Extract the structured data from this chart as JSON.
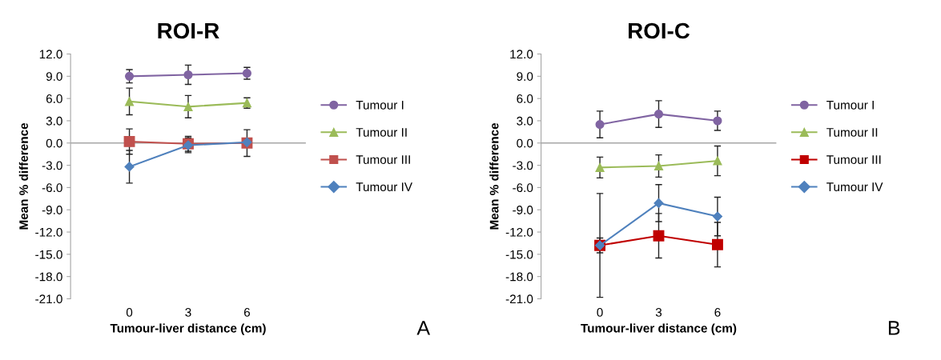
{
  "chart_data": [
    {
      "type": "line",
      "title": "ROI-R",
      "xlabel": "Tumour-liver distance (cm)",
      "ylabel": "Mean % difference",
      "categories": [
        "0",
        "3",
        "6"
      ],
      "ylim": [
        -21,
        12
      ],
      "yticks": [
        {
          "value": 12,
          "label": "12.0"
        },
        {
          "value": 9,
          "label": "9.0"
        },
        {
          "value": 6,
          "label": "6.0"
        },
        {
          "value": 3,
          "label": "3.0"
        },
        {
          "value": 0,
          "label": "0.0"
        },
        {
          "value": -3,
          "label": "-3.0"
        },
        {
          "value": -6,
          "label": "-6.0"
        },
        {
          "value": -9,
          "label": "-9.0"
        },
        {
          "value": -12,
          "label": "-12.0"
        },
        {
          "value": -15,
          "label": "-15.0"
        },
        {
          "value": -18,
          "label": "-18.0"
        },
        {
          "value": -21,
          "label": "-21.0"
        }
      ],
      "ref_lines": [
        {
          "axis": "y",
          "value": 0,
          "color": "#a6a6a6"
        }
      ],
      "grid": false,
      "legend": "right",
      "annotations": [
        "A"
      ],
      "series": [
        {
          "name": "Tumour I",
          "color": "#8064a2",
          "marker": "circle",
          "values": [
            9.0,
            9.2,
            9.4
          ],
          "errors": [
            0.9,
            1.3,
            0.8
          ]
        },
        {
          "name": "Tumour II",
          "color": "#9bbb59",
          "marker": "triangle",
          "values": [
            5.6,
            4.9,
            5.4
          ],
          "errors": [
            1.8,
            1.5,
            0.7
          ]
        },
        {
          "name": "Tumour III",
          "color": "#c0504d",
          "marker": "square",
          "values": [
            0.2,
            -0.1,
            0.0
          ],
          "errors": [
            1.7,
            1.0,
            1.8
          ]
        },
        {
          "name": "Tumour IV",
          "color": "#4f81bd",
          "marker": "diamond",
          "values": [
            -3.2,
            -0.3,
            0.1
          ],
          "errors": [
            2.2,
            1.0,
            null
          ]
        }
      ]
    },
    {
      "type": "line",
      "title": "ROI-C",
      "xlabel": "Tumour-liver distance (cm)",
      "ylabel": "Mean % difference",
      "categories": [
        "0",
        "3",
        "6"
      ],
      "ylim": [
        -21,
        12
      ],
      "yticks": [
        {
          "value": 12,
          "label": "12.0"
        },
        {
          "value": 9,
          "label": "9.0"
        },
        {
          "value": 6,
          "label": "6.0"
        },
        {
          "value": 3,
          "label": "3.0"
        },
        {
          "value": 0,
          "label": "0.0"
        },
        {
          "value": -3,
          "label": "-3.0"
        },
        {
          "value": -6,
          "label": "-6.0"
        },
        {
          "value": -9,
          "label": "-9.0"
        },
        {
          "value": -12,
          "label": "-12.0"
        },
        {
          "value": -15,
          "label": "-15.0"
        },
        {
          "value": -18,
          "label": "-18.0"
        },
        {
          "value": -21,
          "label": "-21.0"
        }
      ],
      "ref_lines": [
        {
          "axis": "y",
          "value": 0,
          "color": "#a6a6a6"
        }
      ],
      "grid": false,
      "legend": "right",
      "annotations": [
        "B"
      ],
      "series": [
        {
          "name": "Tumour I",
          "color": "#8064a2",
          "marker": "circle",
          "values": [
            2.5,
            3.9,
            3.0
          ],
          "errors": [
            1.8,
            1.8,
            1.3
          ]
        },
        {
          "name": "Tumour II",
          "color": "#9bbb59",
          "marker": "triangle",
          "values": [
            -3.3,
            -3.1,
            -2.4
          ],
          "errors": [
            1.4,
            1.5,
            2.0
          ]
        },
        {
          "name": "Tumour III",
          "color": "#c00000",
          "marker": "square",
          "values": [
            -13.8,
            -12.5,
            -13.7
          ],
          "errors": [
            1.0,
            3.0,
            3.0
          ]
        },
        {
          "name": "Tumour IV",
          "color": "#4f81bd",
          "marker": "diamond",
          "values": [
            -13.8,
            -8.1,
            -9.9
          ],
          "errors": [
            7.0,
            2.5,
            2.6
          ]
        }
      ]
    }
  ]
}
